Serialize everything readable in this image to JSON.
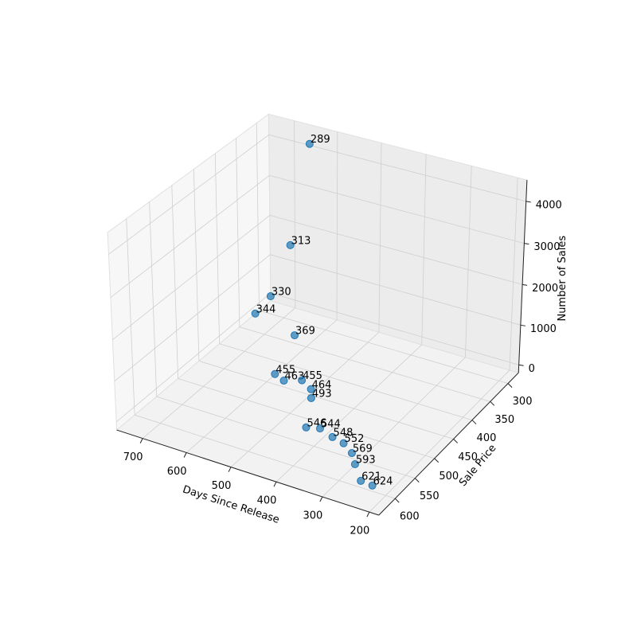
{
  "chart_data": {
    "type": "scatter3d",
    "xlabel": "Days Since Release",
    "ylabel": "Sale Price",
    "zlabel": "Number of Sales",
    "x": [
      647,
      671,
      703,
      727,
      610,
      576,
      548,
      514,
      485,
      458,
      421,
      392,
      361,
      333,
      300,
      272,
      235,
      208
    ],
    "y": [
      289,
      313,
      330,
      344,
      369,
      455,
      463,
      455,
      464,
      493,
      546,
      544,
      548,
      552,
      569,
      593,
      621,
      624
    ],
    "z": [
      4220,
      1850,
      600,
      200,
      230,
      120,
      120,
      170,
      125,
      260,
      155,
      210,
      145,
      130,
      170,
      230,
      235,
      250
    ],
    "color": "#1f77b4",
    "xlim": [
      760,
      180
    ],
    "ylim": [
      640,
      270
    ],
    "zlim": [
      -200,
      4500
    ],
    "xticks": [
      200,
      300,
      400,
      500,
      600,
      700
    ],
    "yticks": [
      300,
      350,
      400,
      450,
      500,
      550,
      600
    ],
    "zticks": [
      0,
      1000,
      2000,
      3000,
      4000
    ],
    "grid": true
  }
}
